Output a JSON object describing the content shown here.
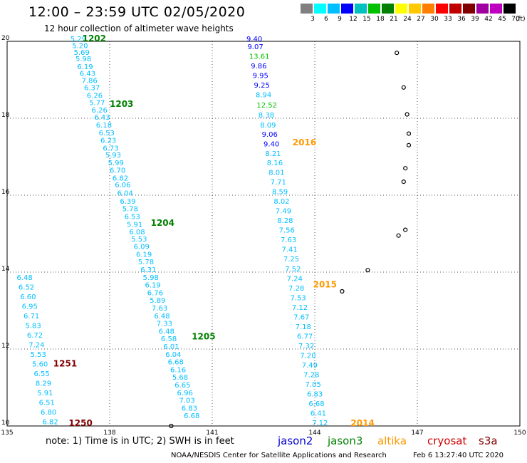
{
  "header": {
    "title": "12:00 – 23:59 UTC 02/05/2020",
    "subtitle": "12 hour collection of altimeter wave heights"
  },
  "scale": {
    "colors": [
      "#808080",
      "#00ffff",
      "#00bfff",
      "#0000ff",
      "#00c0c0",
      "#00c000",
      "#008000",
      "#ffff00",
      "#ffc800",
      "#ff8000",
      "#ff0000",
      "#c00000",
      "#800000",
      "#a000a0",
      "#c000c0",
      "#000000"
    ],
    "ticks": [
      "3",
      "6",
      "9",
      "12",
      "15",
      "18",
      "21",
      "24",
      "27",
      "30",
      "33",
      "36",
      "39",
      "42",
      "45",
      "70"
    ],
    "unit": "(ft)"
  },
  "footer": {
    "note": "note:  1) Time is in UTC;  2) SWH is in feet",
    "satellites": [
      {
        "name": "jason2",
        "color": "#0000cc"
      },
      {
        "name": "jason3",
        "color": "#008000"
      },
      {
        "name": "altika",
        "color": "#ff9900"
      },
      {
        "name": "cryosat",
        "color": "#cc0000"
      },
      {
        "name": "s3a",
        "color": "#800000"
      }
    ],
    "credit": "NOAA/NESDIS Center for Satellite Applications and Research",
    "timestamp": "Feb  6 13:27:40 UTC 2020"
  },
  "chart_data": {
    "type": "scatter",
    "xlim": [
      135,
      150
    ],
    "ylim": [
      10,
      20
    ],
    "x_ticks": [
      "135",
      "138",
      "141",
      "144",
      "147",
      "150"
    ],
    "y_ticks": [
      "10",
      "12",
      "14",
      "16",
      "18",
      "20"
    ],
    "grid": true,
    "pass_labels": [
      {
        "text": "1202",
        "lon": 137.2,
        "lat": 20.0,
        "color": "#008000"
      },
      {
        "text": "1203",
        "lon": 138.0,
        "lat": 18.3,
        "color": "#008000"
      },
      {
        "text": "1204",
        "lon": 139.2,
        "lat": 15.2,
        "color": "#008000"
      },
      {
        "text": "1205",
        "lon": 140.4,
        "lat": 12.25,
        "color": "#008000"
      },
      {
        "text": "2016",
        "lon": 143.35,
        "lat": 17.3,
        "color": "#ff9900"
      },
      {
        "text": "2015",
        "lon": 143.95,
        "lat": 13.6,
        "color": "#ff9900"
      },
      {
        "text": "2014",
        "lon": 145.05,
        "lat": 10.0,
        "color": "#ff9900"
      },
      {
        "text": "1251",
        "lon": 136.35,
        "lat": 11.55,
        "color": "#800000"
      },
      {
        "text": "1250",
        "lon": 136.8,
        "lat": 10.0,
        "color": "#800000"
      }
    ],
    "series": [
      {
        "name": "jason3 1202-1205",
        "values": [
          {
            "lon": 136.85,
            "lat": 20.0,
            "v": "5.29",
            "c": "#00bfff"
          },
          {
            "lon": 136.9,
            "lat": 19.82,
            "v": "5.20",
            "c": "#00bfff"
          },
          {
            "lon": 136.95,
            "lat": 19.65,
            "v": "5.69",
            "c": "#00bfff"
          },
          {
            "lon": 137.0,
            "lat": 19.48,
            "v": "5.98",
            "c": "#00bfff"
          },
          {
            "lon": 137.05,
            "lat": 19.28,
            "v": "6.19",
            "c": "#00bfff"
          },
          {
            "lon": 137.12,
            "lat": 19.1,
            "v": "6.43",
            "c": "#00bfff"
          },
          {
            "lon": 137.18,
            "lat": 18.92,
            "v": "7.86",
            "c": "#00bfff"
          },
          {
            "lon": 137.25,
            "lat": 18.73,
            "v": "6.37",
            "c": "#00bfff"
          },
          {
            "lon": 137.33,
            "lat": 18.53,
            "v": "6.26",
            "c": "#00bfff"
          },
          {
            "lon": 137.4,
            "lat": 18.34,
            "v": "5.77",
            "c": "#00bfff"
          },
          {
            "lon": 137.47,
            "lat": 18.15,
            "v": "6.26",
            "c": "#00bfff"
          },
          {
            "lon": 137.55,
            "lat": 17.96,
            "v": "6.43",
            "c": "#00bfff"
          },
          {
            "lon": 137.6,
            "lat": 17.76,
            "v": "6.18",
            "c": "#00bfff"
          },
          {
            "lon": 137.68,
            "lat": 17.56,
            "v": "6.53",
            "c": "#00bfff"
          },
          {
            "lon": 137.73,
            "lat": 17.36,
            "v": "6.23",
            "c": "#00bfff"
          },
          {
            "lon": 137.8,
            "lat": 17.16,
            "v": "6.73",
            "c": "#00bfff"
          },
          {
            "lon": 137.87,
            "lat": 16.98,
            "v": "5.93",
            "c": "#00bfff"
          },
          {
            "lon": 137.95,
            "lat": 16.78,
            "v": "5.99",
            "c": "#00bfff"
          },
          {
            "lon": 138.0,
            "lat": 16.58,
            "v": "6.70",
            "c": "#00bfff"
          },
          {
            "lon": 138.08,
            "lat": 16.38,
            "v": "6.82",
            "c": "#00bfff"
          },
          {
            "lon": 138.15,
            "lat": 16.2,
            "v": "6.06",
            "c": "#00bfff"
          },
          {
            "lon": 138.22,
            "lat": 15.99,
            "v": "6.04",
            "c": "#00bfff"
          },
          {
            "lon": 138.3,
            "lat": 15.78,
            "v": "6.39",
            "c": "#00bfff"
          },
          {
            "lon": 138.37,
            "lat": 15.58,
            "v": "5.78",
            "c": "#00bfff"
          },
          {
            "lon": 138.43,
            "lat": 15.38,
            "v": "6.53",
            "c": "#00bfff"
          },
          {
            "lon": 138.5,
            "lat": 15.18,
            "v": "5.91",
            "c": "#00bfff"
          },
          {
            "lon": 138.57,
            "lat": 14.98,
            "v": "6.08",
            "c": "#00bfff"
          },
          {
            "lon": 138.63,
            "lat": 14.8,
            "v": "5.53",
            "c": "#00bfff"
          },
          {
            "lon": 138.7,
            "lat": 14.6,
            "v": "6.09",
            "c": "#00bfff"
          },
          {
            "lon": 138.77,
            "lat": 14.4,
            "v": "6.19",
            "c": "#00bfff"
          },
          {
            "lon": 138.83,
            "lat": 14.2,
            "v": "5.78",
            "c": "#00bfff"
          },
          {
            "lon": 138.9,
            "lat": 14.0,
            "v": "6.31",
            "c": "#00bfff"
          },
          {
            "lon": 138.97,
            "lat": 13.8,
            "v": "5.98",
            "c": "#00bfff"
          },
          {
            "lon": 139.03,
            "lat": 13.6,
            "v": "6.19",
            "c": "#00bfff"
          },
          {
            "lon": 139.1,
            "lat": 13.4,
            "v": "6.76",
            "c": "#00bfff"
          },
          {
            "lon": 139.17,
            "lat": 13.2,
            "v": "5.89",
            "c": "#00bfff"
          },
          {
            "lon": 139.23,
            "lat": 13.0,
            "v": "7.63",
            "c": "#00bfff"
          },
          {
            "lon": 139.3,
            "lat": 12.8,
            "v": "6.48",
            "c": "#00bfff"
          },
          {
            "lon": 139.37,
            "lat": 12.6,
            "v": "7.33",
            "c": "#00bfff"
          },
          {
            "lon": 139.43,
            "lat": 12.4,
            "v": "6.48",
            "c": "#00bfff"
          },
          {
            "lon": 139.5,
            "lat": 12.2,
            "v": "6.58",
            "c": "#00bfff"
          },
          {
            "lon": 139.57,
            "lat": 12.0,
            "v": "6.01",
            "c": "#00bfff"
          },
          {
            "lon": 139.63,
            "lat": 11.8,
            "v": "6.04",
            "c": "#00bfff"
          },
          {
            "lon": 139.7,
            "lat": 11.6,
            "v": "6.68",
            "c": "#00bfff"
          },
          {
            "lon": 139.77,
            "lat": 11.4,
            "v": "6.16",
            "c": "#00bfff"
          },
          {
            "lon": 139.83,
            "lat": 11.2,
            "v": "5.68",
            "c": "#00bfff"
          },
          {
            "lon": 139.9,
            "lat": 11.0,
            "v": "6.65",
            "c": "#00bfff"
          },
          {
            "lon": 139.97,
            "lat": 10.8,
            "v": "6.96",
            "c": "#00bfff"
          },
          {
            "lon": 140.03,
            "lat": 10.6,
            "v": "7.03",
            "c": "#00bfff"
          },
          {
            "lon": 140.1,
            "lat": 10.4,
            "v": "6.83",
            "c": "#00bfff"
          },
          {
            "lon": 140.17,
            "lat": 10.2,
            "v": "6.68",
            "c": "#00bfff"
          }
        ]
      },
      {
        "name": "altika 2014-2016",
        "values": [
          {
            "lon": 142.0,
            "lat": 20.0,
            "v": "9.40",
            "c": "#0000ff"
          },
          {
            "lon": 142.03,
            "lat": 19.8,
            "v": "9.07",
            "c": "#0000ff"
          },
          {
            "lon": 142.08,
            "lat": 19.55,
            "v": "13.61",
            "c": "#00c000"
          },
          {
            "lon": 142.13,
            "lat": 19.3,
            "v": "9.86",
            "c": "#0000ff"
          },
          {
            "lon": 142.18,
            "lat": 19.05,
            "v": "9.95",
            "c": "#0000ff"
          },
          {
            "lon": 142.22,
            "lat": 18.8,
            "v": "9.25",
            "c": "#0000ff"
          },
          {
            "lon": 142.27,
            "lat": 18.55,
            "v": "8.94",
            "c": "#00bfff"
          },
          {
            "lon": 142.3,
            "lat": 18.28,
            "v": "12.52",
            "c": "#00c000"
          },
          {
            "lon": 142.35,
            "lat": 18.02,
            "v": "8.38",
            "c": "#00bfff"
          },
          {
            "lon": 142.4,
            "lat": 17.76,
            "v": "8.09",
            "c": "#00bfff"
          },
          {
            "lon": 142.45,
            "lat": 17.52,
            "v": "9.06",
            "c": "#0000ff"
          },
          {
            "lon": 142.5,
            "lat": 17.27,
            "v": "9.40",
            "c": "#0000ff"
          },
          {
            "lon": 142.55,
            "lat": 17.02,
            "v": "8.21",
            "c": "#00bfff"
          },
          {
            "lon": 142.6,
            "lat": 16.78,
            "v": "8.16",
            "c": "#00bfff"
          },
          {
            "lon": 142.65,
            "lat": 16.53,
            "v": "8.01",
            "c": "#00bfff"
          },
          {
            "lon": 142.7,
            "lat": 16.28,
            "v": "7.71",
            "c": "#00bfff"
          },
          {
            "lon": 142.75,
            "lat": 16.03,
            "v": "8.59",
            "c": "#00bfff"
          },
          {
            "lon": 142.8,
            "lat": 15.78,
            "v": "8.02",
            "c": "#00bfff"
          },
          {
            "lon": 142.85,
            "lat": 15.53,
            "v": "7.49",
            "c": "#00bfff"
          },
          {
            "lon": 142.9,
            "lat": 15.28,
            "v": "8.28",
            "c": "#00bfff"
          },
          {
            "lon": 142.95,
            "lat": 15.03,
            "v": "7.56",
            "c": "#00bfff"
          },
          {
            "lon": 143.0,
            "lat": 14.78,
            "v": "7.63",
            "c": "#00bfff"
          },
          {
            "lon": 143.03,
            "lat": 14.53,
            "v": "7.41",
            "c": "#00bfff"
          },
          {
            "lon": 143.08,
            "lat": 14.28,
            "v": "7.25",
            "c": "#00bfff"
          },
          {
            "lon": 143.13,
            "lat": 14.02,
            "v": "7.52",
            "c": "#00bfff"
          },
          {
            "lon": 143.18,
            "lat": 13.77,
            "v": "7.24",
            "c": "#00bfff"
          },
          {
            "lon": 143.23,
            "lat": 13.52,
            "v": "7.28",
            "c": "#00bfff"
          },
          {
            "lon": 143.28,
            "lat": 13.27,
            "v": "7.53",
            "c": "#00bfff"
          },
          {
            "lon": 143.33,
            "lat": 13.02,
            "v": "7.12",
            "c": "#00bfff"
          },
          {
            "lon": 143.38,
            "lat": 12.77,
            "v": "7.67",
            "c": "#00bfff"
          },
          {
            "lon": 143.43,
            "lat": 12.52,
            "v": "7.18",
            "c": "#00bfff"
          },
          {
            "lon": 143.48,
            "lat": 12.27,
            "v": "6.77",
            "c": "#00bfff"
          },
          {
            "lon": 143.52,
            "lat": 12.02,
            "v": "7.32",
            "c": "#00bfff"
          },
          {
            "lon": 143.57,
            "lat": 11.77,
            "v": "7.20",
            "c": "#00bfff"
          },
          {
            "lon": 143.62,
            "lat": 11.52,
            "v": "7.49",
            "c": "#00bfff"
          },
          {
            "lon": 143.67,
            "lat": 11.27,
            "v": "7.28",
            "c": "#00bfff"
          },
          {
            "lon": 143.72,
            "lat": 11.02,
            "v": "7.05",
            "c": "#00bfff"
          },
          {
            "lon": 143.77,
            "lat": 10.77,
            "v": "6.83",
            "c": "#00bfff"
          },
          {
            "lon": 143.82,
            "lat": 10.52,
            "v": "6.68",
            "c": "#00bfff"
          },
          {
            "lon": 143.87,
            "lat": 10.27,
            "v": "6.41",
            "c": "#00bfff"
          },
          {
            "lon": 143.92,
            "lat": 10.02,
            "v": "7.12",
            "c": "#00bfff"
          }
        ]
      },
      {
        "name": "s3a 1250-1251",
        "values": [
          {
            "lon": 135.28,
            "lat": 13.8,
            "v": "6.48",
            "c": "#00bfff"
          },
          {
            "lon": 135.33,
            "lat": 13.55,
            "v": "6.52",
            "c": "#00bfff"
          },
          {
            "lon": 135.38,
            "lat": 13.3,
            "v": "6.60",
            "c": "#00bfff"
          },
          {
            "lon": 135.43,
            "lat": 13.05,
            "v": "6.95",
            "c": "#00bfff"
          },
          {
            "lon": 135.48,
            "lat": 12.8,
            "v": "6.71",
            "c": "#00bfff"
          },
          {
            "lon": 135.53,
            "lat": 12.55,
            "v": "5.83",
            "c": "#00bfff"
          },
          {
            "lon": 135.58,
            "lat": 12.3,
            "v": "6.72",
            "c": "#00bfff"
          },
          {
            "lon": 135.63,
            "lat": 12.05,
            "v": "7.24",
            "c": "#00bfff"
          },
          {
            "lon": 135.68,
            "lat": 11.8,
            "v": "5.53",
            "c": "#00bfff"
          },
          {
            "lon": 135.73,
            "lat": 11.55,
            "v": "5.60",
            "c": "#00bfff"
          },
          {
            "lon": 135.78,
            "lat": 11.3,
            "v": "6.55",
            "c": "#00bfff"
          },
          {
            "lon": 135.83,
            "lat": 11.05,
            "v": "8.29",
            "c": "#00bfff"
          },
          {
            "lon": 135.88,
            "lat": 10.8,
            "v": "5.91",
            "c": "#00bfff"
          },
          {
            "lon": 135.93,
            "lat": 10.55,
            "v": "6.51",
            "c": "#00bfff"
          },
          {
            "lon": 135.98,
            "lat": 10.3,
            "v": "6.80",
            "c": "#00bfff"
          },
          {
            "lon": 136.03,
            "lat": 10.05,
            "v": "6.82",
            "c": "#00bfff"
          }
        ]
      }
    ],
    "islands": [
      {
        "lon": 146.4,
        "lat": 19.7
      },
      {
        "lon": 146.6,
        "lat": 18.8
      },
      {
        "lon": 146.7,
        "lat": 18.1
      },
      {
        "lon": 146.75,
        "lat": 17.6
      },
      {
        "lon": 146.75,
        "lat": 17.3
      },
      {
        "lon": 146.65,
        "lat": 16.7
      },
      {
        "lon": 146.6,
        "lat": 16.35
      },
      {
        "lon": 146.65,
        "lat": 15.1
      },
      {
        "lon": 146.45,
        "lat": 14.95
      },
      {
        "lon": 145.55,
        "lat": 14.05
      },
      {
        "lon": 144.8,
        "lat": 13.5
      },
      {
        "lon": 139.8,
        "lat": 10.0
      }
    ]
  }
}
